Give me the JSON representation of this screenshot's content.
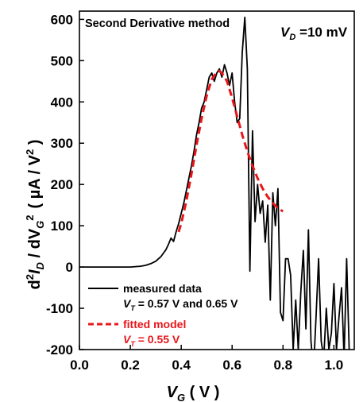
{
  "chart_data": {
    "type": "line",
    "title": "Second Derivative method",
    "condition_label": {
      "base": "V",
      "sub": "D",
      "value": " =10 mV"
    },
    "xlabel": {
      "base": "V",
      "sub": "G",
      "unit": " ( V )"
    },
    "ylabel": {
      "prefix": "d",
      "sup1": "2",
      "i": "I",
      "isub": "D",
      "slash": " / dV",
      "vsub": "G",
      "sup2": "2",
      "unit": "( µA / V",
      "unitsup": "2",
      "unitclose": " )"
    },
    "xlim": [
      0.0,
      1.08
    ],
    "ylim": [
      -200,
      620
    ],
    "xticks": [
      "0.0",
      "0.2",
      "0.4",
      "0.6",
      "0.8",
      "1.0"
    ],
    "xtick_values": [
      0.0,
      0.2,
      0.4,
      0.6,
      0.8,
      1.0
    ],
    "yticks": [
      "-200",
      "-100",
      "0",
      "100",
      "200",
      "300",
      "400",
      "500",
      "600"
    ],
    "ytick_values": [
      -200,
      -100,
      0,
      100,
      200,
      300,
      400,
      500,
      600
    ],
    "legend_position": "bottom-left",
    "series": [
      {
        "name": "measured data",
        "legend_line2": {
          "base": "V",
          "sub": "T",
          "rest": " = 0.57 V and 0.65 V"
        },
        "color": "#000000",
        "style": "solid",
        "x": [
          0.0,
          0.1,
          0.2,
          0.24,
          0.26,
          0.28,
          0.3,
          0.32,
          0.34,
          0.35,
          0.36,
          0.37,
          0.38,
          0.39,
          0.4,
          0.41,
          0.42,
          0.43,
          0.44,
          0.45,
          0.46,
          0.47,
          0.48,
          0.49,
          0.5,
          0.51,
          0.52,
          0.53,
          0.54,
          0.55,
          0.56,
          0.57,
          0.58,
          0.59,
          0.6,
          0.61,
          0.62,
          0.63,
          0.64,
          0.65,
          0.66,
          0.67,
          0.68,
          0.69,
          0.7,
          0.71,
          0.72,
          0.73,
          0.74,
          0.75,
          0.76,
          0.77,
          0.78,
          0.79,
          0.8,
          0.81,
          0.82,
          0.83,
          0.84,
          0.85,
          0.86,
          0.87,
          0.88,
          0.89,
          0.9,
          0.91,
          0.92,
          0.93,
          0.94,
          0.95,
          0.96,
          0.97,
          0.98,
          0.99,
          1.0,
          1.01,
          1.02,
          1.03,
          1.04,
          1.05,
          1.06
        ],
        "y": [
          0,
          0,
          0,
          2,
          4,
          8,
          14,
          25,
          42,
          55,
          70,
          62,
          85,
          105,
          130,
          155,
          185,
          215,
          245,
          280,
          320,
          350,
          385,
          400,
          430,
          460,
          470,
          450,
          470,
          480,
          460,
          490,
          470,
          440,
          470,
          400,
          350,
          360,
          520,
          605,
          480,
          -10,
          330,
          110,
          200,
          130,
          160,
          60,
          150,
          -80,
          180,
          100,
          190,
          -110,
          -130,
          20,
          20,
          -20,
          -200,
          -80,
          -200,
          -60,
          40,
          -150,
          90,
          -180,
          -250,
          -120,
          20,
          -180,
          -220,
          -100,
          -200,
          -160,
          -40,
          -200,
          -120,
          -50,
          -220,
          20,
          -200
        ]
      },
      {
        "name": "fitted model",
        "legend_line2": {
          "base": "V",
          "sub": "T",
          "rest": " = 0.55 V"
        },
        "color": "#e8161b",
        "style": "dashed",
        "x": [
          0.39,
          0.4,
          0.42,
          0.44,
          0.46,
          0.48,
          0.5,
          0.52,
          0.54,
          0.55,
          0.56,
          0.58,
          0.6,
          0.62,
          0.64,
          0.66,
          0.68,
          0.7,
          0.72,
          0.74,
          0.76,
          0.78,
          0.8
        ],
        "y": [
          85,
          105,
          160,
          225,
          295,
          360,
          415,
          455,
          473,
          475,
          470,
          450,
          410,
          365,
          320,
          280,
          245,
          215,
          190,
          170,
          155,
          142,
          135
        ]
      }
    ]
  }
}
